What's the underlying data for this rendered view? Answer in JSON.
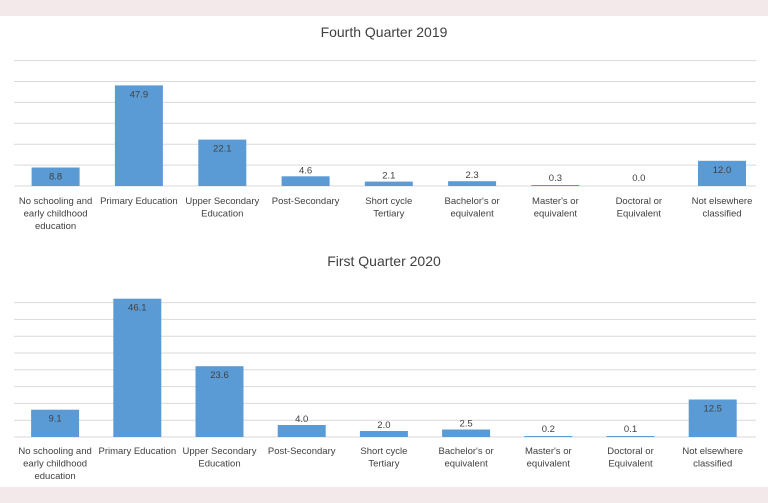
{
  "colors": {
    "bar": "#5b9bd5",
    "background": "#f3e9ea",
    "panel": "#ffffff",
    "grid": "#d9d9d9",
    "text": "#404040"
  },
  "chart_data": [
    {
      "type": "bar",
      "title": "Fourth Quarter 2019",
      "categories": [
        [
          "No schooling and",
          "early childhood",
          "education"
        ],
        [
          "Primary Education"
        ],
        [
          "Upper Secondary",
          "Education"
        ],
        [
          "Post-Secondary"
        ],
        [
          "Short cycle",
          "Tertiary"
        ],
        [
          "Bachelor's or",
          "equivalent"
        ],
        [
          "Master's or",
          "equivalent"
        ],
        [
          "Doctoral or",
          "Equivalent"
        ],
        [
          "Not elsewhere",
          "classified"
        ]
      ],
      "values": [
        8.8,
        47.9,
        22.1,
        4.6,
        2.1,
        2.3,
        0.3,
        0.0,
        12.0
      ],
      "value_labels": [
        "8.8",
        "47.9",
        "22.1",
        "4.6",
        "2.1",
        "2.3",
        "0.3",
        "0.0",
        "12.0"
      ],
      "ylim": [
        0,
        60
      ],
      "grid": true,
      "legend": "none"
    },
    {
      "type": "bar",
      "title": "First Quarter 2020",
      "categories": [
        [
          "No schooling and",
          "early childhood",
          "education"
        ],
        [
          "Primary Education"
        ],
        [
          "Upper Secondary",
          "Education"
        ],
        [
          "Post-Secondary"
        ],
        [
          "Short cycle",
          "Tertiary"
        ],
        [
          "Bachelor's or",
          "equivalent"
        ],
        [
          "Master's or",
          "equivalent"
        ],
        [
          "Doctoral or",
          "Equivalent"
        ],
        [
          "Not elsewhere",
          "classified"
        ]
      ],
      "values": [
        9.1,
        46.1,
        23.6,
        4.0,
        2.0,
        2.5,
        0.2,
        0.1,
        12.5
      ],
      "value_labels": [
        "9.1",
        "46.1",
        "23.6",
        "4.0",
        "2.0",
        "2.5",
        "0.2",
        "0.1",
        "12.5"
      ],
      "ylim": [
        0,
        50
      ],
      "grid": true,
      "legend": "none"
    }
  ]
}
